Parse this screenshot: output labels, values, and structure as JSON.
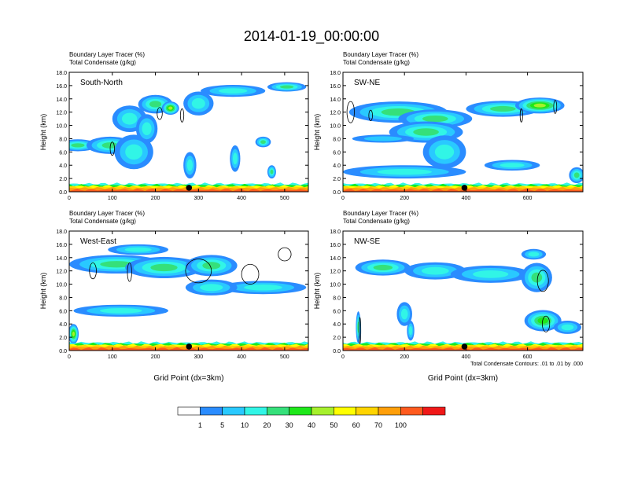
{
  "chart_data": {
    "type": "heatmap",
    "title": "2014-01-19_00:00:00",
    "colorbar": {
      "colors": [
        "#ffffff",
        "#2a8cff",
        "#29c9ff",
        "#31f5e6",
        "#35e07a",
        "#1ee81a",
        "#a6f02c",
        "#ffff00",
        "#ffd400",
        "#ff9f0a",
        "#ff5a1e",
        "#f01818"
      ],
      "labels": [
        "1",
        "5",
        "10",
        "20",
        "30",
        "40",
        "50",
        "60",
        "70",
        "100"
      ]
    },
    "panels": [
      {
        "label": "South-North",
        "subtitle1": "Boundary Layer Tracer   (%)",
        "subtitle2": "Total Condensate   (g/kg)",
        "ylabel": "Height (km)",
        "xlabel": "",
        "x_range": [
          0,
          555
        ],
        "y_range": [
          0,
          18
        ],
        "xticks": [
          "0",
          "100",
          "200",
          "300",
          "400",
          "500"
        ],
        "xtick_values": [
          0,
          100,
          200,
          300,
          400,
          500
        ],
        "yticks": [
          "0.0",
          "2.0",
          "4.0",
          "6.0",
          "8.0",
          "10.0",
          "12.0",
          "14.0",
          "16.0",
          "18.0"
        ],
        "marker_x": 278,
        "blobs": [
          {
            "x": 20,
            "y": 7.0,
            "rx": 45,
            "ry": 0.9,
            "v": 25
          },
          {
            "x": 95,
            "y": 7.0,
            "rx": 55,
            "ry": 1.3,
            "v": 20
          },
          {
            "x": 150,
            "y": 6.0,
            "rx": 45,
            "ry": 2.6,
            "v": 18
          },
          {
            "x": 140,
            "y": 11.0,
            "rx": 40,
            "ry": 2.0,
            "v": 15
          },
          {
            "x": 200,
            "y": 13.2,
            "rx": 40,
            "ry": 1.4,
            "v": 28
          },
          {
            "x": 235,
            "y": 12.6,
            "rx": 20,
            "ry": 1.0,
            "v": 40
          },
          {
            "x": 180,
            "y": 9.5,
            "rx": 25,
            "ry": 2.2,
            "v": 12
          },
          {
            "x": 300,
            "y": 13.3,
            "rx": 35,
            "ry": 1.8,
            "v": 15
          },
          {
            "x": 380,
            "y": 15.2,
            "rx": 75,
            "ry": 0.9,
            "v": 15
          },
          {
            "x": 505,
            "y": 15.8,
            "rx": 45,
            "ry": 0.7,
            "v": 20
          },
          {
            "x": 280,
            "y": 4.0,
            "rx": 15,
            "ry": 2.0,
            "v": 10
          },
          {
            "x": 385,
            "y": 5.0,
            "rx": 12,
            "ry": 2.0,
            "v": 12
          },
          {
            "x": 450,
            "y": 7.5,
            "rx": 18,
            "ry": 0.8,
            "v": 20
          },
          {
            "x": 470,
            "y": 3.0,
            "rx": 10,
            "ry": 1.0,
            "v": 20
          }
        ],
        "contours": [
          {
            "x": 210,
            "y": 11.8,
            "rx": 6,
            "ry": 0.9
          },
          {
            "x": 262,
            "y": 11.5,
            "rx": 4,
            "ry": 1.0
          },
          {
            "x": 100,
            "y": 6.5,
            "rx": 5,
            "ry": 1.0
          }
        ]
      },
      {
        "label": "SW-NE",
        "subtitle1": "Boundary Layer Tracer   (%)",
        "subtitle2": "Total Condensate   (g/kg)",
        "ylabel": "Height (km)",
        "xlabel": "",
        "x_range": [
          0,
          780
        ],
        "y_range": [
          0,
          18
        ],
        "xticks": [
          "0",
          "200",
          "400",
          "600"
        ],
        "xtick_values": [
          0,
          200,
          400,
          600
        ],
        "yticks": [
          "0.0",
          "2.0",
          "4.0",
          "6.0",
          "8.0",
          "10.0",
          "12.0",
          "14.0",
          "16.0",
          "18.0"
        ],
        "marker_x": 395,
        "blobs": [
          {
            "x": 180,
            "y": 12.0,
            "rx": 160,
            "ry": 1.6,
            "v": 25
          },
          {
            "x": 300,
            "y": 11.0,
            "rx": 120,
            "ry": 1.4,
            "v": 28
          },
          {
            "x": 520,
            "y": 12.5,
            "rx": 120,
            "ry": 1.2,
            "v": 20
          },
          {
            "x": 640,
            "y": 13.0,
            "rx": 80,
            "ry": 1.2,
            "v": 45
          },
          {
            "x": 270,
            "y": 9.0,
            "rx": 120,
            "ry": 1.6,
            "v": 20
          },
          {
            "x": 330,
            "y": 6.0,
            "rx": 70,
            "ry": 2.5,
            "v": 15
          },
          {
            "x": 130,
            "y": 8.0,
            "rx": 100,
            "ry": 0.6,
            "v": 8
          },
          {
            "x": 200,
            "y": 3.0,
            "rx": 200,
            "ry": 1.0,
            "v": 12
          },
          {
            "x": 550,
            "y": 4.0,
            "rx": 90,
            "ry": 0.8,
            "v": 10
          },
          {
            "x": 760,
            "y": 2.5,
            "rx": 25,
            "ry": 1.2,
            "v": 25
          }
        ],
        "contours": [
          {
            "x": 25,
            "y": 12.0,
            "rx": 12,
            "ry": 1.6
          },
          {
            "x": 90,
            "y": 11.5,
            "rx": 6,
            "ry": 0.8
          },
          {
            "x": 690,
            "y": 12.8,
            "rx": 5,
            "ry": 1.0
          },
          {
            "x": 580,
            "y": 11.5,
            "rx": 4,
            "ry": 1.0
          }
        ]
      },
      {
        "label": "West-East",
        "subtitle1": "Boundary Layer Tracer   (%)",
        "subtitle2": "Total Condensate   (g/kg)",
        "ylabel": "Height (km)",
        "xlabel": "Grid Point (dx=3km)",
        "x_range": [
          0,
          555
        ],
        "y_range": [
          0,
          18
        ],
        "xticks": [
          "0",
          "100",
          "200",
          "300",
          "400",
          "500"
        ],
        "xtick_values": [
          0,
          100,
          200,
          300,
          400,
          500
        ],
        "yticks": [
          "0.0",
          "2.0",
          "4.0",
          "6.0",
          "8.0",
          "10.0",
          "12.0",
          "14.0",
          "16.0",
          "18.0"
        ],
        "marker_x": 278,
        "blobs": [
          {
            "x": 110,
            "y": 13.0,
            "rx": 110,
            "ry": 1.4,
            "v": 20
          },
          {
            "x": 220,
            "y": 12.5,
            "rx": 90,
            "ry": 1.6,
            "v": 25
          },
          {
            "x": 330,
            "y": 12.8,
            "rx": 60,
            "ry": 1.6,
            "v": 22
          },
          {
            "x": 160,
            "y": 15.2,
            "rx": 70,
            "ry": 0.8,
            "v": 10
          },
          {
            "x": 120,
            "y": 6.0,
            "rx": 110,
            "ry": 0.9,
            "v": 10
          },
          {
            "x": 450,
            "y": 9.5,
            "rx": 100,
            "ry": 1.0,
            "v": 10
          },
          {
            "x": 330,
            "y": 9.5,
            "rx": 60,
            "ry": 1.2,
            "v": 12
          },
          {
            "x": 10,
            "y": 2.5,
            "rx": 12,
            "ry": 1.5,
            "v": 45
          }
        ],
        "contours": [
          {
            "x": 55,
            "y": 12.0,
            "rx": 8,
            "ry": 1.2
          },
          {
            "x": 140,
            "y": 11.8,
            "rx": 5,
            "ry": 1.4
          },
          {
            "x": 300,
            "y": 12.0,
            "rx": 30,
            "ry": 1.8
          },
          {
            "x": 420,
            "y": 11.5,
            "rx": 20,
            "ry": 1.5
          },
          {
            "x": 500,
            "y": 14.5,
            "rx": 15,
            "ry": 1.0
          }
        ]
      },
      {
        "label": "NW-SE",
        "subtitle1": "Boundary Layer Tracer   (%)",
        "subtitle2": "Total Condensate   (g/kg)",
        "ylabel": "Height (km)",
        "xlabel": "Grid Point (dx=3km)",
        "x_range": [
          0,
          780
        ],
        "y_range": [
          0,
          18
        ],
        "xticks": [
          "0",
          "200",
          "400",
          "600"
        ],
        "xtick_values": [
          0,
          200,
          400,
          600
        ],
        "yticks": [
          "0.0",
          "2.0",
          "4.0",
          "6.0",
          "8.0",
          "10.0",
          "12.0",
          "14.0",
          "16.0",
          "18.0"
        ],
        "marker_x": 395,
        "contour_note": "Total Condensate Contours: .01 to .01 by .000",
        "blobs": [
          {
            "x": 130,
            "y": 12.5,
            "rx": 90,
            "ry": 1.2,
            "v": 20
          },
          {
            "x": 300,
            "y": 12.0,
            "rx": 100,
            "ry": 1.3,
            "v": 15
          },
          {
            "x": 480,
            "y": 11.5,
            "rx": 130,
            "ry": 1.3,
            "v": 15
          },
          {
            "x": 630,
            "y": 11.0,
            "rx": 50,
            "ry": 2.2,
            "v": 28
          },
          {
            "x": 650,
            "y": 4.5,
            "rx": 60,
            "ry": 1.6,
            "v": 30
          },
          {
            "x": 730,
            "y": 3.5,
            "rx": 45,
            "ry": 1.0,
            "v": 12
          },
          {
            "x": 200,
            "y": 5.5,
            "rx": 25,
            "ry": 1.8,
            "v": 12
          },
          {
            "x": 50,
            "y": 3.5,
            "rx": 8,
            "ry": 2.4,
            "v": 20
          },
          {
            "x": 220,
            "y": 3.0,
            "rx": 12,
            "ry": 1.5,
            "v": 15
          },
          {
            "x": 620,
            "y": 14.5,
            "rx": 40,
            "ry": 0.8,
            "v": 10
          }
        ],
        "contours": [
          {
            "x": 650,
            "y": 10.5,
            "rx": 18,
            "ry": 1.6
          },
          {
            "x": 660,
            "y": 4.0,
            "rx": 12,
            "ry": 1.2
          },
          {
            "x": 55,
            "y": 3.0,
            "rx": 3,
            "ry": 2.0
          }
        ]
      }
    ]
  }
}
